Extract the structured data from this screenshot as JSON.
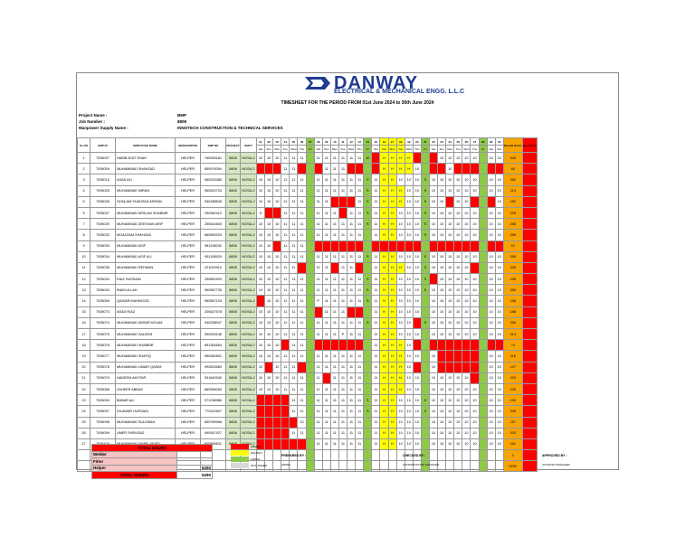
{
  "logo": {
    "name": "DANWAY",
    "subtitle": "ELECTRICAL & MECHANICAL ENGG. L.L.C"
  },
  "title": "TIMESHEET FOR THE PERIOD FROM 01st June 2024 to 30th June 2024",
  "info": [
    {
      "label": "Project Name :",
      "value": "BMP"
    },
    {
      "label": "Job Number :",
      "value": "8808"
    },
    {
      "label": "Manpower Supply Name :",
      "value": "INNOTECH CONSTRUCTION & TECHNICAL SERVICES"
    }
  ],
  "headers": [
    "SL NO",
    "EMP ID",
    "EMPLOYEE NAME",
    "DESIGNATION",
    "EMP NO",
    "PROJECT",
    "SHIFT"
  ],
  "days": [
    "01",
    "02",
    "03",
    "04",
    "05",
    "06",
    "07",
    "08",
    "09",
    "10",
    "11",
    "12",
    "13",
    "14",
    "15",
    "16",
    "17",
    "18",
    "19",
    "20",
    "21",
    "22",
    "23",
    "24",
    "25",
    "26",
    "27",
    "28",
    "29",
    "30"
  ],
  "weekdays": [
    "Sat",
    "Sun",
    "Mon",
    "Tue",
    "Wed",
    "Thu",
    "Fri",
    "Sat",
    "Sun",
    "Mon",
    "Tue",
    "Wed",
    "Thu",
    "Fri",
    "Sat",
    "Sun",
    "Mon",
    "Tue",
    "Wed",
    "Thu",
    "Fri",
    "Sat",
    "Sun",
    "Mon",
    "Tue",
    "Wed",
    "Thu",
    "Fri",
    "Sat",
    "Sun"
  ],
  "total_headers": [
    "Normal Hours",
    "Total Days"
  ],
  "rows": [
    {
      "sl": "1",
      "id": "7005007",
      "name": "HABIB AYAT SHAH",
      "des": "HELPER",
      "no": "760935181",
      "proj": "8808",
      "shift": "NOSA-2",
      "cells": "10,10,10,11,11,11,,11,11,11,11,11,11,10,,H,H,H,H,,,,10,10,10,10,10,,10,10",
      "tot": "208"
    },
    {
      "sl": "2",
      "id": "7005009",
      "name": "MUHAMMAD SHAHZAD",
      "des": "HELPER",
      "no": "850976054",
      "proj": "8808",
      "shift": "NOSA-2",
      "cells": ",,,11,11,,,,11,11,11,,,,,H,H,H,H,10,,,,10,,,,,,",
      "tot": "85"
    },
    {
      "sl": "3",
      "id": "7005013",
      "name": "ASAD ALI",
      "des": "HELPER",
      "no": "960233385",
      "proj": "8808",
      "shift": "NOSA-2",
      "cells": "10,10,10,11,11,11,,11,11,11,11,11,11,S,11,H,H,10,10,10,S,10,10,10,10,10,10,,10,10",
      "tot": "260"
    },
    {
      "sl": "4",
      "id": "7005025",
      "name": "MUHAMMAD IMRAN",
      "des": "HELPER",
      "no": "960532734",
      "proj": "8808",
      "shift": "NOSA-2",
      "cells": "10,10,10,11,11,11,,11,11,11,11,11,11,S,11,H,H,H,10,10,S,10,10,10,10,10,10,,10,10",
      "tot": "214"
    },
    {
      "sl": "5",
      "id": "7005026",
      "name": "GHULAM SHAHZAD AKRAM",
      "des": "HELPER",
      "no": "930188545",
      "proj": "8808",
      "shift": "NOSA-2",
      "cells": "10,10,10,11,11,11,,11,11,,,,11,S,11,H,H,H,10,10,S,10,10,,10,10,,,,10",
      "tot": "182"
    },
    {
      "sl": "6",
      "id": "7005027",
      "name": "MUHAMMAD ARSLAN SHABBIR",
      "des": "HELPER",
      "no": "250360412",
      "proj": "8808",
      "shift": "NOSA-2",
      "cells": "8,,,11,11,11,,11,11,11,,11,11,S,11,H,H,10,10,10,S,10,10,10,10,10,10,,10,10",
      "tot": "225"
    },
    {
      "sl": "7",
      "id": "7005029",
      "name": "MUHAMMAD ZEESHAN ARIF",
      "des": "HELPER",
      "no": "250624800",
      "proj": "8808",
      "shift": "NOSA-2",
      "cells": "10,10,10,11,11,11,,11,11,11,11,11,11,S,11,H,H,10,10,10,S,10,10,10,10,10,10,,10,10",
      "tot": "256"
    },
    {
      "sl": "8",
      "id": "7005032",
      "name": "MOAZZAM SHAHZAD",
      "des": "HELPER",
      "no": "860699203",
      "proj": "8808",
      "shift": "NOSA-2",
      "cells": "10,10,10,11,11,11,,11,11,11,11,11,11,,11,H,H,10,10,10,S,10,10,10,10,10,10,,10,10",
      "tot": "256"
    },
    {
      "sl": "9",
      "id": "7005033",
      "name": "MUHAMMAD ASIF",
      "des": "HELPER",
      "no": "981238032",
      "proj": "8808",
      "shift": "NOSA-2",
      "cells": "10,10,,11,11,11,,,,,,,,,,,,,,,,,,,,,,,,",
      "tot": "62"
    },
    {
      "sl": "10",
      "id": "7005034",
      "name": "MUHAMMAD ASIF ALI",
      "des": "HELPER",
      "no": "951108529",
      "proj": "8808",
      "shift": "NOSA-2",
      "cells": "10,10,10,11,11,11,,11,11,11,11,11,11,S,11,H,H,10,10,10,S,10,10,10,10,10,10,,10,10",
      "tot": "258"
    },
    {
      "sl": "11",
      "id": "7005036",
      "name": "MUHAMMAD REHMAN",
      "des": "HELPER",
      "no": "221024910",
      "proj": "8808",
      "shift": "NOSA-2",
      "cells": "10,10,10,11,11,,,11,11,,11,11,,,11,H,H,H,10,10,S,10,10,10,10,10,,,10,10",
      "tot": "208"
    },
    {
      "sl": "12",
      "id": "7005042",
      "name": "RIAZ HUSSAIN",
      "des": "HELPER",
      "no": "250820903",
      "proj": "8808",
      "shift": "NOSA-2",
      "cells": "10,10,10,11,11,11,,11,11,11,11,11,11,S,11,H,H,10,10,10,S,,10,10,10,10,10,,10,10",
      "tot": "248"
    },
    {
      "sl": "13",
      "id": "7005043",
      "name": "INAM ULLAH",
      "des": "HELPER",
      "no": "960967726",
      "proj": "8808",
      "shift": "NOSA-2",
      "cells": "10,10,10,11,11,11,,11,11,11,11,11,11,S,11,H,H,10,10,10,S,10,10,10,10,10,10,,10,10",
      "tot": "256"
    },
    {
      "sl": "14",
      "id": "7005069",
      "name": "QAISAR MAHMOOD",
      "des": "HELPER",
      "no": "960567193",
      "proj": "8808",
      "shift": "NOSA-2",
      "cells": ",10,10,11,11,11,,P,11,11,11,11,11,S,11,H,H,10,10,10,,10,10,10,10,10,10,,10,10",
      "tot": "188"
    },
    {
      "sl": "15",
      "id": "7005073",
      "name": "ASAD RIAZ",
      "des": "HELPER",
      "no": "200627578",
      "proj": "8808",
      "shift": "NOSA-2",
      "cells": "10,10,10,11,11,11,,,11,11,11,,,,11,H,H,10,10,10,,10,10,10,10,10,10,,10,10",
      "tot": "188"
    },
    {
      "sl": "16",
      "id": "7005074",
      "name": "MUHAMMAD ANSAR ASLAM",
      "des": "HELPER",
      "no": "940238047",
      "proj": "8808",
      "shift": "NOSA-2",
      "cells": "10,10,10,11,11,11,,11,11,11,11,11,11,S,11,H,H,10,10,,S,10,10,10,10,10,10,,10,10",
      "tot": "256"
    },
    {
      "sl": "17",
      "id": "7005075",
      "name": "MUHAMMAD SALEEM",
      "des": "HELPER",
      "no": "990026146",
      "proj": "8808",
      "shift": "NOSA-2",
      "cells": "10,10,10,11,11,11,,11,11,11,P,11,11,,11,H,H,10,10,10,,10,10,10,10,10,10,,10,10",
      "tot": "214"
    },
    {
      "sl": "18",
      "id": "7005076",
      "name": "MUHAMMAD SHABBIR",
      "des": "HELPER",
      "no": "891354684",
      "proj": "8808",
      "shift": "NOSA-2",
      "cells": "10,10,10,,11,11,,,,,,,,,11,H,H,H,10,,,,,,,,,,,",
      "tot": "74"
    },
    {
      "sl": "19",
      "id": "7005077",
      "name": "MUHAMMAD SHAFIQ",
      "des": "HELPER",
      "no": "960260691",
      "proj": "8808",
      "shift": "NOSA-2",
      "cells": "10,10,10,11,11,11,,11,11,11,11,11,11,,11,H,H,H,10,10,,10,,,,,,,10,10",
      "tot": "216"
    },
    {
      "sl": "20",
      "id": "7005078",
      "name": "MUHAMMAD UMAIR QASIM",
      "des": "HELPER",
      "no": "990815580",
      "proj": "8808",
      "shift": "NOSA-2",
      "cells": "10,,10,11,11,,,11,11,11,11,11,11,,11,H,H,H,10,,,10,,,,,,,10,10",
      "tot": "127"
    },
    {
      "sl": "21",
      "id": "7005079",
      "name": "NADEEM AKHTAR",
      "des": "HELPER",
      "no": "931649340",
      "proj": "8808",
      "shift": "NOSA-2",
      "cells": "10,10,10,11,11,11,,11,,11,11,11,11,,11,H,H,H,10,10,,10,10,10,10,10,,,10,10",
      "tot": "226"
    },
    {
      "sl": "22",
      "id": "7005088",
      "name": "ZAHEER ABBAS",
      "des": "HELPER",
      "no": "860398260",
      "proj": "8808",
      "shift": "NOSA-2",
      "cells": "10,10,10,11,11,11,,11,11,11,11,11,11,,11,H,H,H,10,10,,10,10,10,10,10,10,,10,10",
      "tot": "235"
    },
    {
      "sl": "23",
      "id": "7005094",
      "name": "BABAR ALI",
      "des": "HELPER",
      "no": "971238986",
      "proj": "8808",
      "shift": "NOSA-2",
      "cells": ",,,,11,11,,11,11,11,11,11,11,S,11,H,H,10,10,10,S,10,10,10,10,10,10,,10,10",
      "tot": "190"
    },
    {
      "sl": "24",
      "id": "7005097",
      "name": "DILAWAR HUSSAIN",
      "des": "HELPER",
      "no": "770312607",
      "proj": "8808",
      "shift": "NOSA-2",
      "cells": ",,,,11,11,,11,11,11,11,11,11,S,11,H,H,10,10,10,S,10,10,10,10,10,10,,10,10",
      "tot": "208"
    },
    {
      "sl": "25",
      "id": "7005098",
      "name": "MUHAMMAD SULEMAN",
      "des": "HELPER",
      "no": "850789966",
      "proj": "8808",
      "shift": "NOSA-2",
      "cells": ",,,,,10,,11,11,11,11,11,11,,11,H,H,10,10,10,,10,10,10,10,10,10,,10,10",
      "tot": "187"
    },
    {
      "sl": "26",
      "id": "7005099",
      "name": "UMER SHEHZAD",
      "des": "HELPER",
      "no": "990547927",
      "proj": "8808",
      "shift": "NOSA-2",
      "cells": ",,,,11,11,,11,11,11,11,11,11,,11,H,H,10,10,10,,10,10,10,10,10,10,,10,10",
      "tot": "203"
    },
    {
      "sl": "27",
      "id": "7005100",
      "name": "MUHAMMAD TAHIR JAVED",
      "des": "HELPER",
      "no": "900589531",
      "proj": "8808",
      "shift": "NOSA-2",
      "cells": ",,,,,,,11,11,11,11,11,11,,11,H,H,10,10,10,,10,10,10,10,10,10,,10,10",
      "tot": "161"
    }
  ],
  "extra_rows": [
    {
      "tot": "0"
    },
    {
      "tot": "5290"
    }
  ],
  "summary": {
    "title": "TOTAL HOURS",
    "rows": [
      {
        "label": "Welder",
        "value": ""
      },
      {
        "label": "Fitter",
        "value": ""
      },
      {
        "label": "Helper",
        "value": "5290"
      }
    ],
    "total_label": "TOTAL HOURS",
    "total_value": "5290"
  },
  "legend": [
    {
      "color": "#ff0000",
      "text": "ABSENT"
    },
    {
      "color": "#ffff00",
      "text": "HOLIDAY"
    },
    {
      "color": "#8fc94a",
      "text": "FRIDAY"
    },
    {
      "color": "#d9d9d9",
      "text": "NOT JOINED"
    }
  ],
  "signatures": [
    {
      "label": "PREPARED BY :",
      "role": "ADMIN"
    },
    {
      "label": "CHECKED BY :",
      "role": "CONSTRUCTION MANAGER"
    },
    {
      "label": "APPROVED BY :",
      "role": "COUNTRY MANAGER"
    }
  ]
}
